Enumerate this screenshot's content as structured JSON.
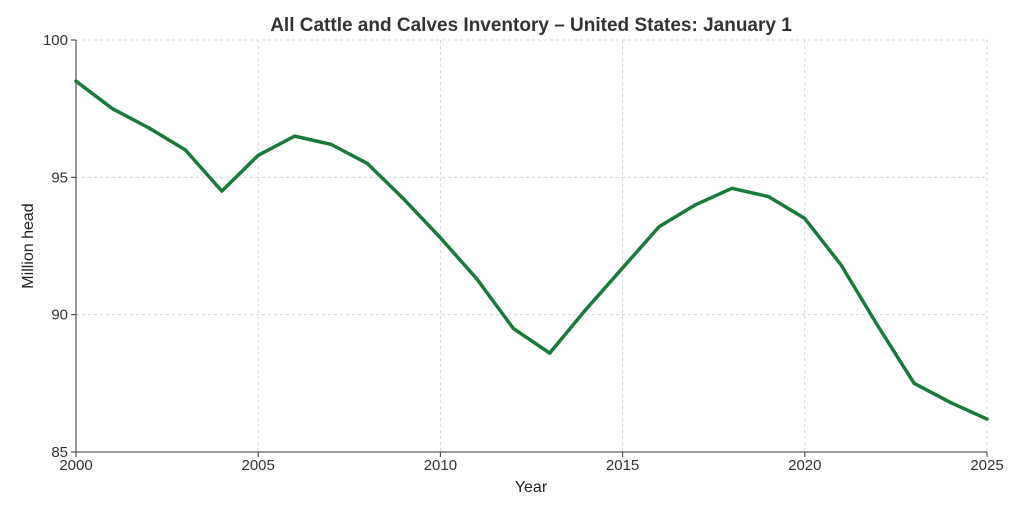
{
  "chart_data": {
    "type": "line",
    "title": "All Cattle and Calves Inventory – United States: January 1",
    "xlabel": "Year",
    "ylabel": "Million head",
    "xlim": [
      2000,
      2025
    ],
    "ylim": [
      85,
      100
    ],
    "xticks": [
      2000,
      2005,
      2010,
      2015,
      2020,
      2025
    ],
    "yticks": [
      85,
      90,
      95,
      100
    ],
    "grid": true,
    "series": [
      {
        "color": "#1a7a3a",
        "x": [
          2000,
          2001,
          2002,
          2003,
          2004,
          2005,
          2006,
          2007,
          2008,
          2009,
          2010,
          2011,
          2012,
          2013,
          2014,
          2015,
          2016,
          2017,
          2018,
          2019,
          2020,
          2021,
          2022,
          2023,
          2024,
          2025
        ],
        "y": [
          98.5,
          97.5,
          96.8,
          96.0,
          94.5,
          95.8,
          96.5,
          96.2,
          95.5,
          94.2,
          92.8,
          91.3,
          89.5,
          88.6,
          90.2,
          91.7,
          93.2,
          94.0,
          94.6,
          94.3,
          93.5,
          91.8,
          89.6,
          87.5,
          86.8,
          86.2
        ]
      }
    ]
  }
}
